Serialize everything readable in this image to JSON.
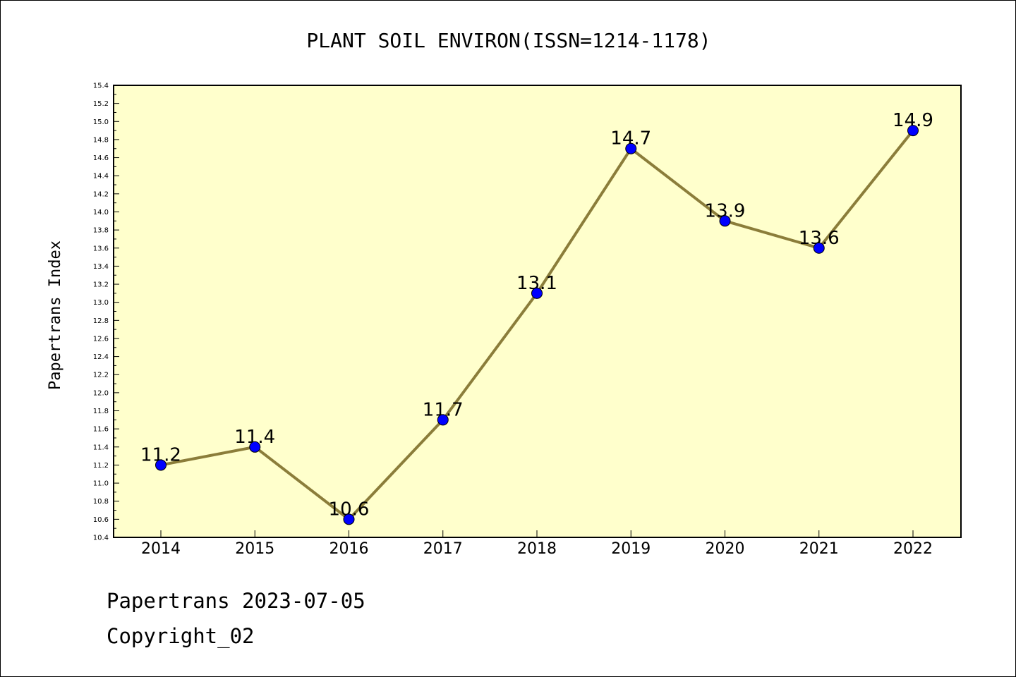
{
  "chart_data": {
    "type": "line",
    "title": "PLANT SOIL ENVIRON(ISSN=1214-1178)",
    "ylabel": "Papertrans Index",
    "xlabel": "",
    "categories": [
      "2014",
      "2015",
      "2016",
      "2017",
      "2018",
      "2019",
      "2020",
      "2021",
      "2022"
    ],
    "values": [
      11.2,
      11.4,
      10.6,
      11.7,
      13.1,
      14.7,
      13.9,
      13.6,
      14.9
    ],
    "data_labels": [
      "11.2",
      "11.4",
      "10.6",
      "11.7",
      "13.1",
      "14.7",
      "13.9",
      "13.6",
      "14.9"
    ],
    "ylim": [
      10.4,
      15.4
    ],
    "yticks": [
      "10.4",
      "10.6",
      "10.8",
      "11.0",
      "11.2",
      "11.4",
      "11.6",
      "11.8",
      "12.0",
      "12.2",
      "12.4",
      "12.6",
      "12.8",
      "13.0",
      "13.2",
      "13.4",
      "13.6",
      "13.8",
      "14.0",
      "14.2",
      "14.4",
      "14.6",
      "14.8",
      "15.0",
      "15.2",
      "15.4"
    ],
    "grid": false,
    "colors": {
      "line": "#8B7D3A",
      "marker": "#0000FF",
      "plot_background": "#FFFFCC"
    }
  },
  "footer": {
    "line1": "Papertrans 2023-07-05",
    "line2": "Copyright_02"
  }
}
